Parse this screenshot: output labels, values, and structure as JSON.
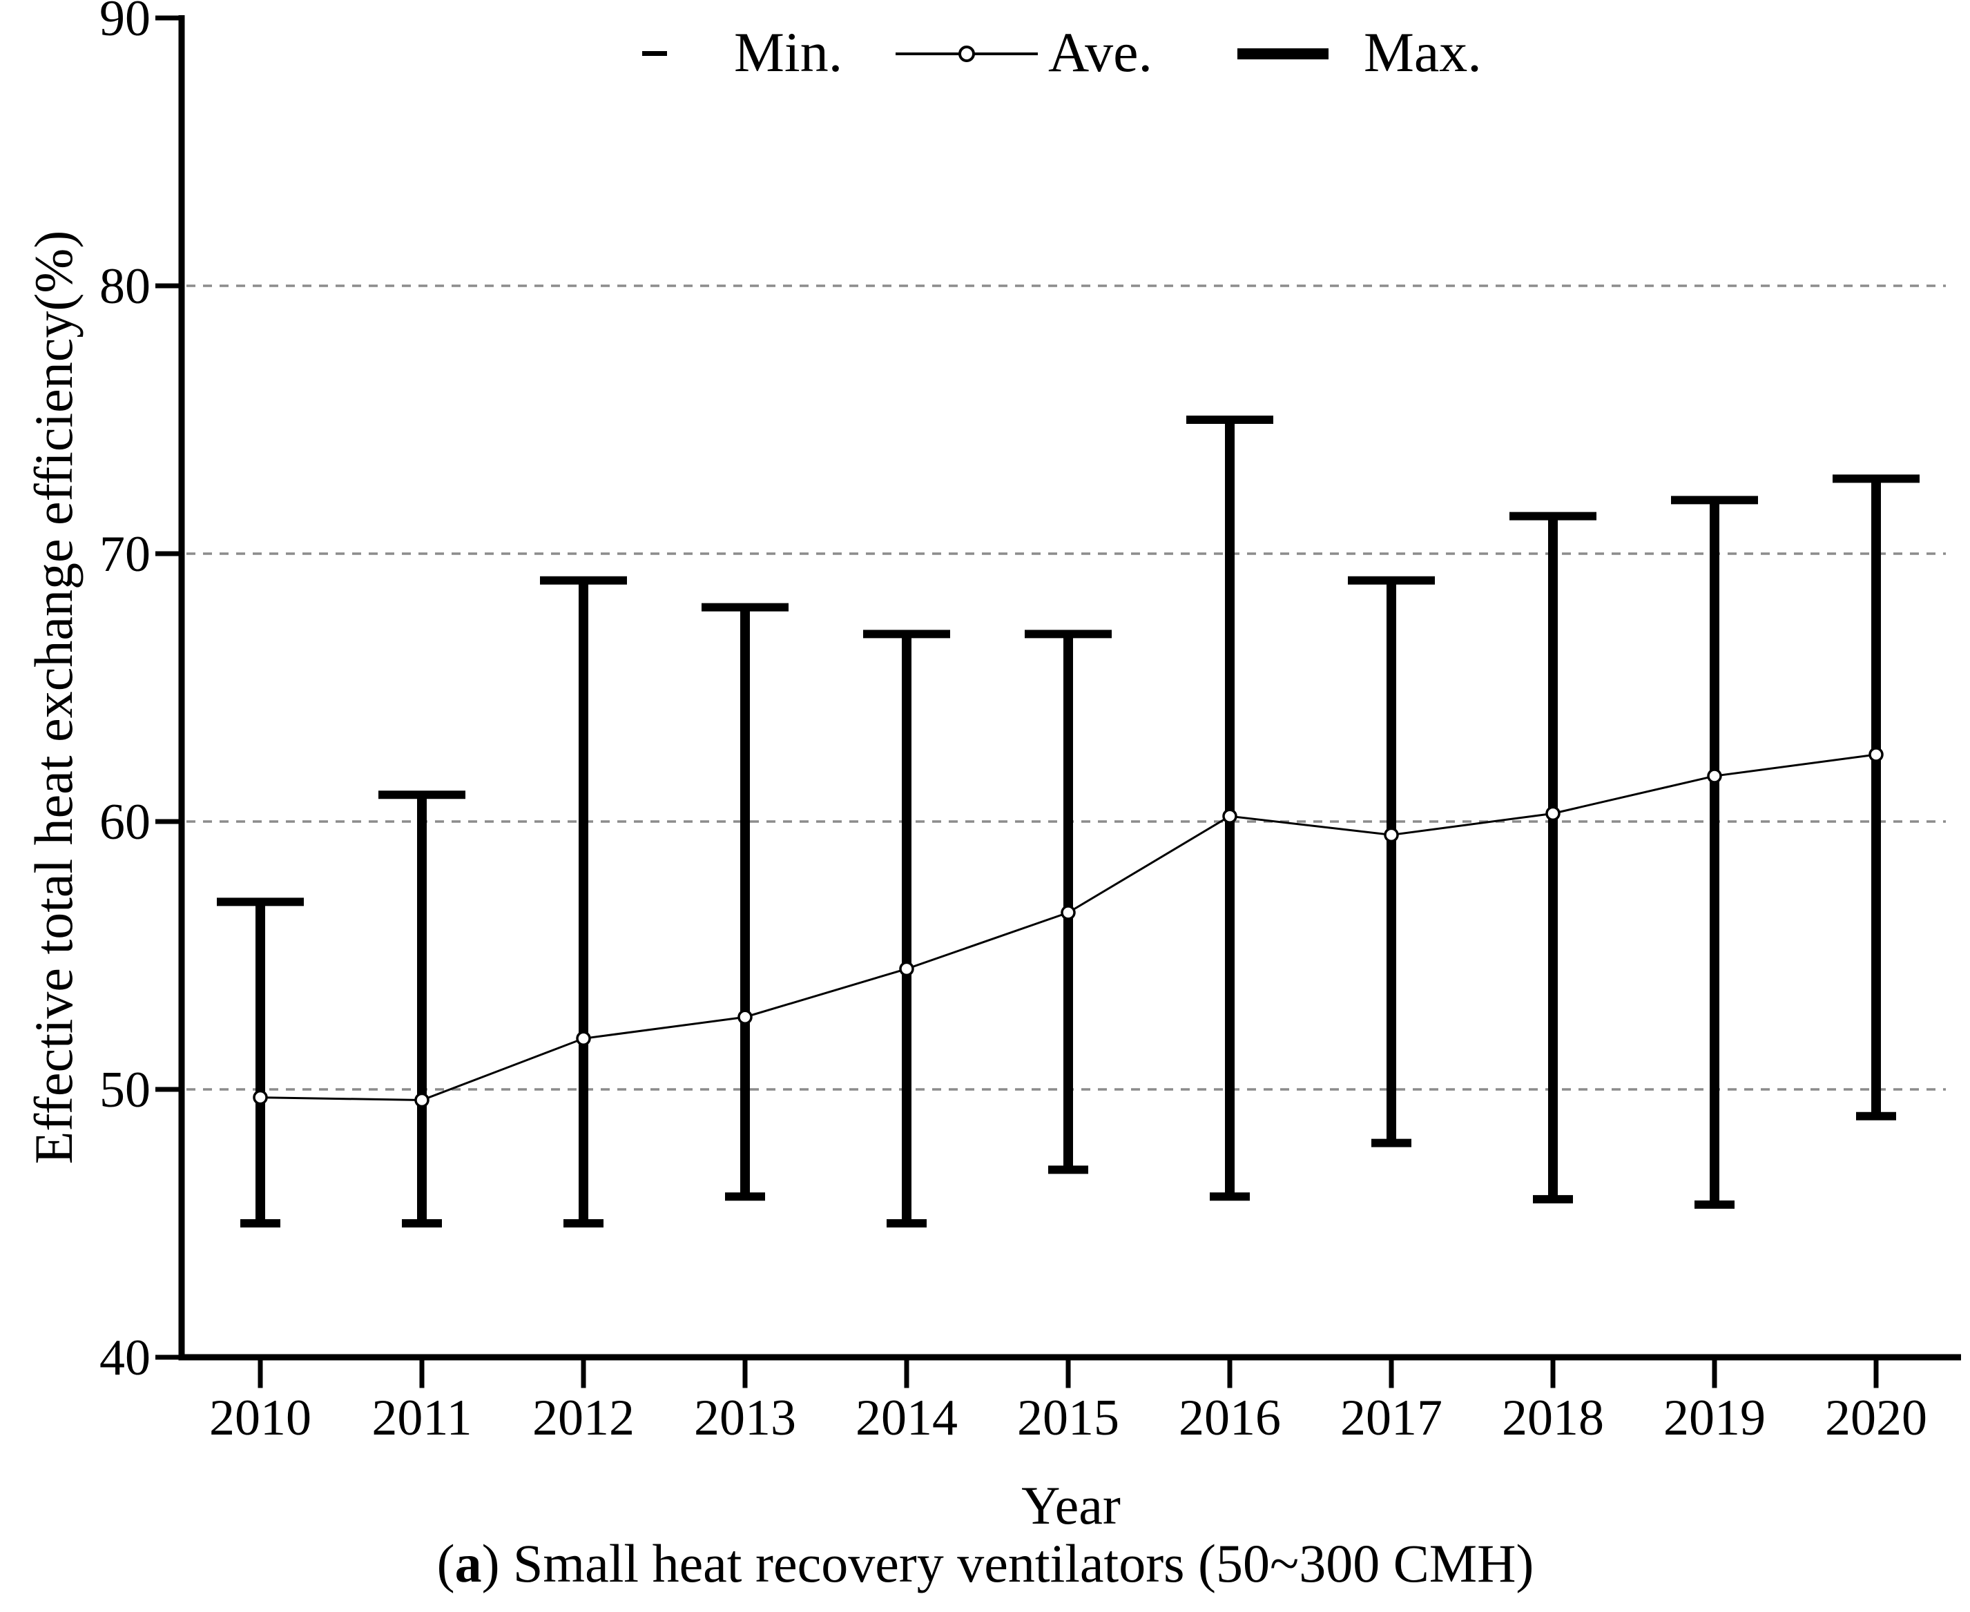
{
  "page": {
    "background": "#ffffff"
  },
  "colors": {
    "ink": "#000000",
    "gridline": "#8c8c8c",
    "marker_fill": "#ffffff"
  },
  "legend": {
    "items": [
      {
        "label": "Min.",
        "symbol": "min-dash"
      },
      {
        "label": "Ave.",
        "symbol": "ave-line-with-circle"
      },
      {
        "label": "Max.",
        "symbol": "max-thick-line"
      }
    ]
  },
  "y_axis": {
    "title": "Effective total heat exchange efficiency(%)",
    "ticks": [
      40,
      50,
      60,
      70,
      80,
      90
    ],
    "min": 40,
    "max": 90
  },
  "x_axis": {
    "title": "Year",
    "ticks": [
      "2010",
      "2011",
      "2012",
      "2013",
      "2014",
      "2015",
      "2016",
      "2017",
      "2018",
      "2019",
      "2020"
    ]
  },
  "caption": {
    "prefix": "(",
    "letter": "a",
    "rest": ") Small heat recovery ventilators (50~300 CMH)"
  },
  "chart_data": {
    "type": "line",
    "x": [
      2010,
      2011,
      2012,
      2013,
      2014,
      2015,
      2016,
      2017,
      2018,
      2019,
      2020
    ],
    "series": [
      {
        "name": "Min.",
        "role": "error-bar-bottom",
        "values": [
          45,
          45,
          45,
          46,
          45,
          47,
          46,
          48,
          45.9,
          45.7,
          49
        ]
      },
      {
        "name": "Ave.",
        "role": "line-with-open-circle-markers",
        "values": [
          49.7,
          49.6,
          51.9,
          52.7,
          54.5,
          56.6,
          60.2,
          59.5,
          60.3,
          61.7,
          62.5
        ]
      },
      {
        "name": "Max.",
        "role": "error-bar-top",
        "values": [
          57,
          61,
          69,
          68,
          67,
          67,
          75,
          69,
          71.4,
          72,
          72.8
        ]
      }
    ],
    "title": "",
    "xlabel": "Year",
    "ylabel": "Effective total heat exchange efficiency(%)",
    "ylim": [
      40,
      90
    ],
    "grid": "horizontal dashed gridlines at 50, 60, 70, 80",
    "legend_position": "top-center",
    "representation": "thick vertical error bar from Min to Max per year (wide cap at Max, short cap at Min); Ave drawn as thin line with open circle markers"
  }
}
